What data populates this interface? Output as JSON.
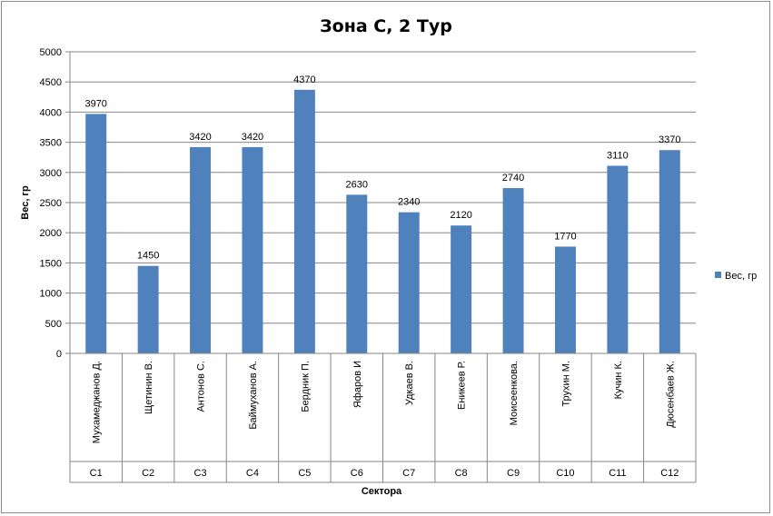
{
  "chart_data": {
    "type": "bar",
    "title": "Зона С, 2 Тур",
    "xlabel": "Сектора",
    "ylabel": "Вес, гр",
    "categories": [
      "Мухамеджанов Д.",
      "Щетинин В.",
      "Антонов С.",
      "Баймуханов А.",
      "Бердник П.",
      "Яфаров И",
      "Удкаев В.",
      "Еникеев Р.",
      "Моисеенкова.",
      "Трухин М.",
      "Кучин К.",
      "Дюсенбаев Ж."
    ],
    "sectors": [
      "С1",
      "С2",
      "С3",
      "С4",
      "С5",
      "С6",
      "С7",
      "С8",
      "С9",
      "С10",
      "С11",
      "С12"
    ],
    "series": [
      {
        "name": "Вес, гр",
        "values": [
          3970,
          1450,
          3420,
          3420,
          4370,
          2630,
          2340,
          2120,
          2740,
          1770,
          3110,
          3370
        ],
        "color": "#4f81bd"
      }
    ],
    "ylim": [
      0,
      5000
    ],
    "yticks": [
      0,
      500,
      1000,
      1500,
      2000,
      2500,
      3000,
      3500,
      4000,
      4500,
      5000
    ],
    "grid": true,
    "legend": "right"
  }
}
